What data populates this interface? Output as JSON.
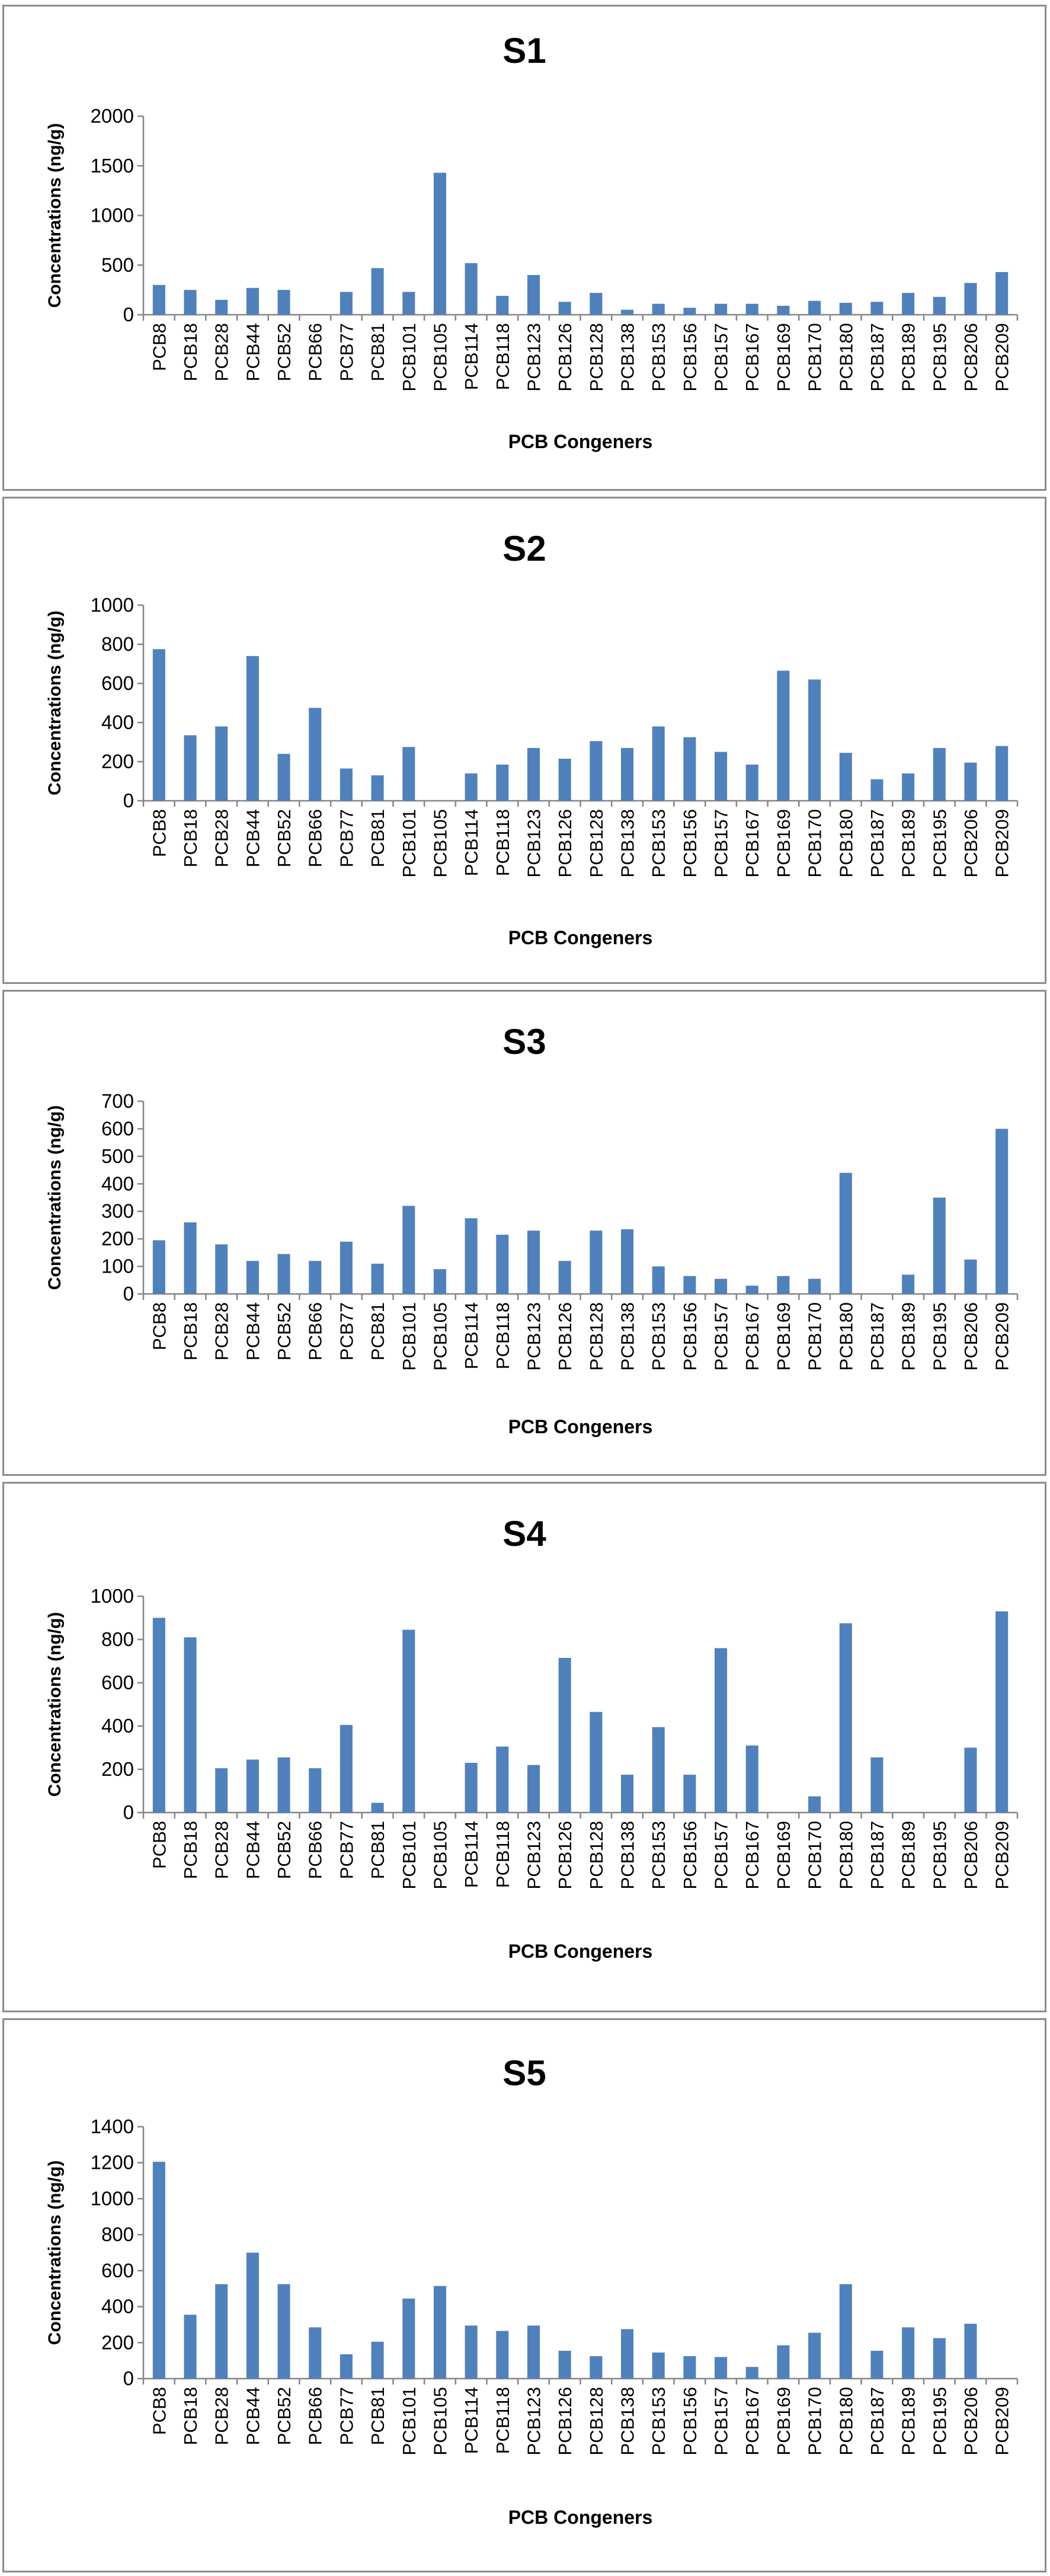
{
  "chart_data": [
    {
      "type": "bar",
      "title": "S1",
      "xlabel": "PCB Congeners",
      "ylabel": "Concentrations (ng/g)",
      "categories": [
        "PCB8",
        "PCB18",
        "PCB28",
        "PCB44",
        "PCB52",
        "PCB66",
        "PCB77",
        "PCB81",
        "PCB101",
        "PCB105",
        "PCB114",
        "PCB118",
        "PCB123",
        "PCB126",
        "PCB128",
        "PCB138",
        "PCB153",
        "PCB156",
        "PCB157",
        "PCB167",
        "PCB169",
        "PCB170",
        "PCB180",
        "PCB187",
        "PCB189",
        "PCB195",
        "PCB206",
        "PCB209"
      ],
      "values": [
        300,
        250,
        150,
        270,
        250,
        0,
        230,
        470,
        230,
        1430,
        520,
        190,
        400,
        130,
        220,
        50,
        110,
        70,
        110,
        110,
        90,
        140,
        120,
        130,
        220,
        180,
        320,
        430
      ],
      "ylim": [
        0,
        2000
      ],
      "yticks": [
        0,
        500,
        1000,
        1500,
        2000
      ],
      "grid": false,
      "legend": "none"
    },
    {
      "type": "bar",
      "title": "S2",
      "xlabel": "PCB Congeners",
      "ylabel": "Concentrations  (ng/g)",
      "categories": [
        "PCB8",
        "PCB18",
        "PCB28",
        "PCB44",
        "PCB52",
        "PCB66",
        "PCB77",
        "PCB81",
        "PCB101",
        "PCB105",
        "PCB114",
        "PCB118",
        "PCB123",
        "PCB126",
        "PCB128",
        "PCB138",
        "PCB153",
        "PCB156",
        "PCB157",
        "PCB167",
        "PCB169",
        "PCB170",
        "PCB180",
        "PCB187",
        "PCB189",
        "PCB195",
        "PCB206",
        "PCB209"
      ],
      "values": [
        775,
        335,
        380,
        740,
        240,
        475,
        165,
        130,
        275,
        0,
        140,
        185,
        270,
        215,
        305,
        270,
        380,
        325,
        250,
        185,
        665,
        620,
        245,
        110,
        140,
        270,
        195,
        280
      ],
      "ylim": [
        0,
        1000
      ],
      "yticks": [
        0,
        200,
        400,
        600,
        800,
        1000
      ],
      "grid": false,
      "legend": "none"
    },
    {
      "type": "bar",
      "title": "S3",
      "xlabel": "PCB Congeners",
      "ylabel": "Concentrations (ng/g)",
      "categories": [
        "PCB8",
        "PCB18",
        "PCB28",
        "PCB44",
        "PCB52",
        "PCB66",
        "PCB77",
        "PCB81",
        "PCB101",
        "PCB105",
        "PCB114",
        "PCB118",
        "PCB123",
        "PCB126",
        "PCB128",
        "PCB138",
        "PCB153",
        "PCB156",
        "PCB157",
        "PCB167",
        "PCB169",
        "PCB170",
        "PCB180",
        "PCB187",
        "PCB189",
        "PCB195",
        "PCB206",
        "PCB209"
      ],
      "values": [
        195,
        260,
        180,
        120,
        145,
        120,
        190,
        110,
        320,
        90,
        275,
        215,
        230,
        120,
        230,
        235,
        100,
        65,
        55,
        30,
        65,
        55,
        440,
        0,
        70,
        350,
        125,
        600
      ],
      "ylim": [
        0,
        700
      ],
      "yticks": [
        0,
        100,
        200,
        300,
        400,
        500,
        600,
        700
      ],
      "grid": false,
      "legend": "none"
    },
    {
      "type": "bar",
      "title": "S4",
      "xlabel": "PCB Congeners",
      "ylabel": "Concentrations (ng/g)",
      "categories": [
        "PCB8",
        "PCB18",
        "PCB28",
        "PCB44",
        "PCB52",
        "PCB66",
        "PCB77",
        "PCB81",
        "PCB101",
        "PCB105",
        "PCB114",
        "PCB118",
        "PCB123",
        "PCB126",
        "PCB128",
        "PCB138",
        "PCB153",
        "PCB156",
        "PCB157",
        "PCB167",
        "PCB169",
        "PCB170",
        "PCB180",
        "PCB187",
        "PCB189",
        "PCB195",
        "PCB206",
        "PCB209"
      ],
      "values": [
        900,
        810,
        205,
        245,
        255,
        205,
        405,
        45,
        845,
        0,
        230,
        305,
        220,
        715,
        465,
        175,
        395,
        175,
        760,
        310,
        0,
        75,
        875,
        255,
        0,
        0,
        300,
        930
      ],
      "ylim": [
        0,
        1000
      ],
      "yticks": [
        0,
        200,
        400,
        600,
        800,
        1000
      ],
      "grid": false,
      "legend": "none"
    },
    {
      "type": "bar",
      "title": "S5",
      "xlabel": "PCB Congeners",
      "ylabel": "Concentrations (ng/g)",
      "categories": [
        "PCB8",
        "PCB18",
        "PCB28",
        "PCB44",
        "PCB52",
        "PCB66",
        "PCB77",
        "PCB81",
        "PCB101",
        "PCB105",
        "PCB114",
        "PCB118",
        "PCB123",
        "PCB126",
        "PCB128",
        "PCB138",
        "PCB153",
        "PCB156",
        "PCB157",
        "PCB167",
        "PCB169",
        "PCB170",
        "PCB180",
        "PCB187",
        "PCB189",
        "PCB195",
        "PCB206",
        "PCB209"
      ],
      "values": [
        1205,
        355,
        525,
        700,
        525,
        285,
        135,
        205,
        445,
        515,
        295,
        265,
        295,
        155,
        125,
        275,
        145,
        125,
        120,
        65,
        185,
        255,
        525,
        155,
        285,
        225,
        305,
        0
      ],
      "ylim": [
        0,
        1400
      ],
      "yticks": [
        0,
        200,
        400,
        600,
        800,
        1000,
        1200,
        1400
      ],
      "grid": false,
      "legend": "none"
    }
  ]
}
